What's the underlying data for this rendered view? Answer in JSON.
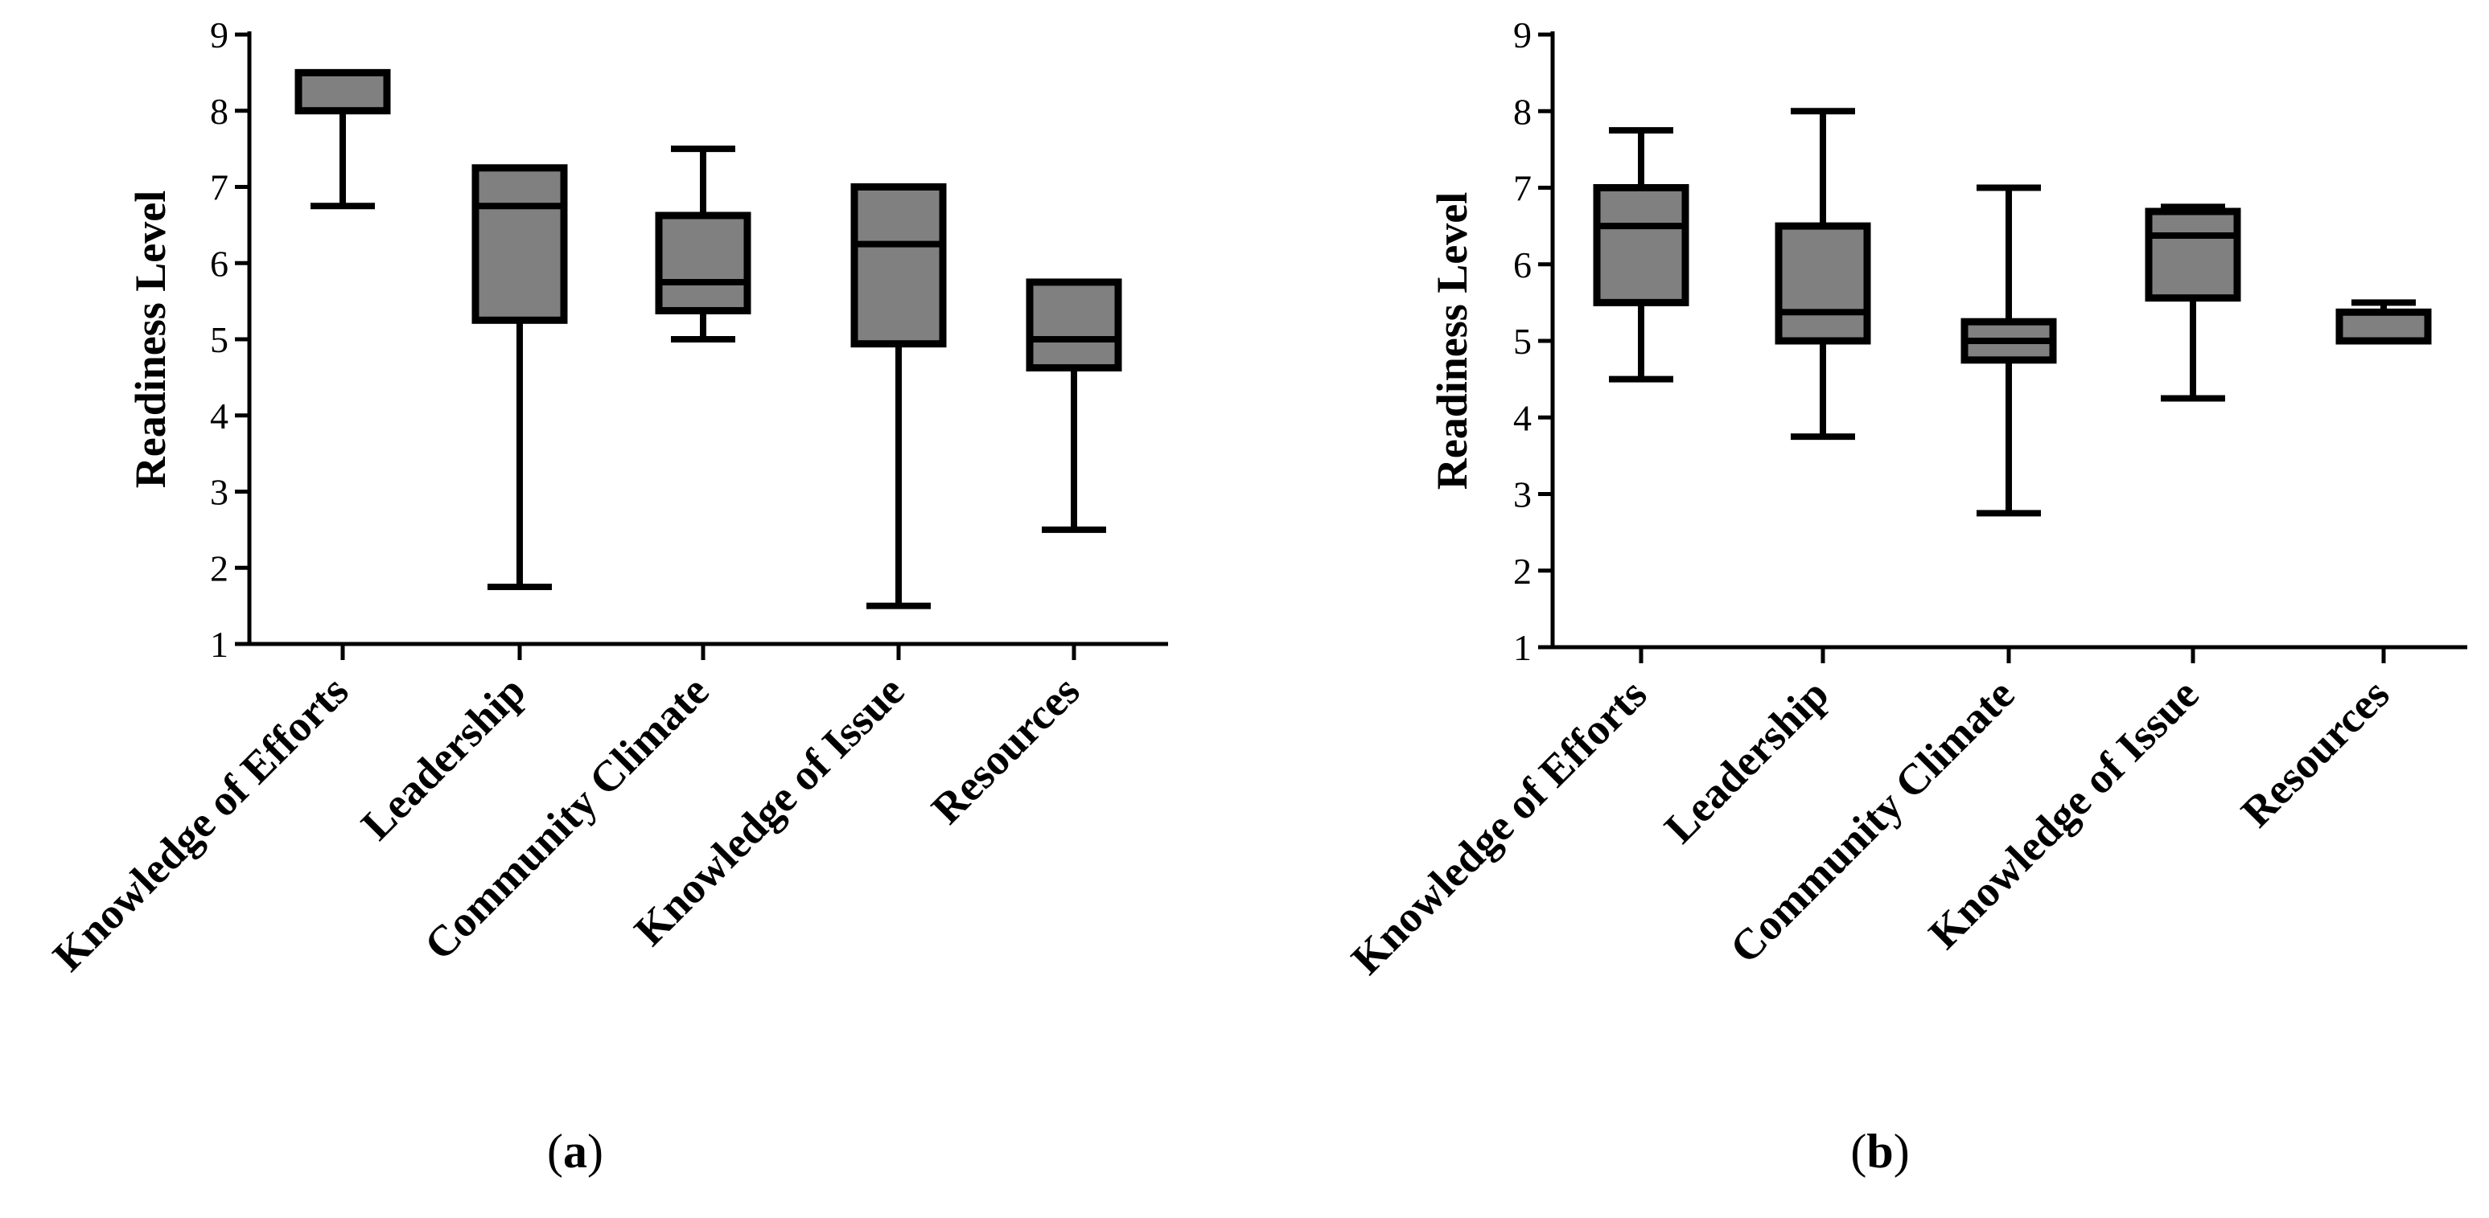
{
  "chart_data": [
    {
      "type": "box",
      "panel": "a",
      "ylabel": "Readiness Level",
      "xlabel": "",
      "ylim": [
        1,
        9
      ],
      "yticks": [
        1,
        2,
        3,
        4,
        5,
        6,
        7,
        8,
        9
      ],
      "categories": [
        "Knowledge of Efforts",
        "Leadership",
        "Community Climate",
        "Knowledge of Issue",
        "Resources"
      ],
      "boxes": [
        {
          "name": "Knowledge of Efforts",
          "min": 6.75,
          "q1": 8.0,
          "median": 8.0,
          "q3": 8.5,
          "max": 8.5
        },
        {
          "name": "Leadership",
          "min": 1.75,
          "q1": 5.25,
          "median": 6.75,
          "q3": 7.25,
          "max": 7.25
        },
        {
          "name": "Community Climate",
          "min": 5.0,
          "q1": 5.375,
          "median": 5.75,
          "q3": 6.625,
          "max": 7.5
        },
        {
          "name": "Knowledge of Issue",
          "min": 1.5,
          "q1": 4.94,
          "median": 6.25,
          "q3": 7.0,
          "max": 7.0
        },
        {
          "name": "Resources",
          "min": 2.5,
          "q1": 4.625,
          "median": 5.0,
          "q3": 5.75,
          "max": 5.75
        }
      ],
      "caption": {
        "open": "(",
        "letter": "a",
        "close": ")"
      }
    },
    {
      "type": "box",
      "panel": "b",
      "ylabel": "Readiness Level",
      "xlabel": "",
      "ylim": [
        1,
        9
      ],
      "yticks": [
        1,
        2,
        3,
        4,
        5,
        6,
        7,
        8,
        9
      ],
      "categories": [
        "Knowledge of Efforts",
        "Leadership",
        "Community Climate",
        "Knowledge of Issue",
        "Resources"
      ],
      "boxes": [
        {
          "name": "Knowledge of Efforts",
          "min": 4.5,
          "q1": 5.5,
          "median": 6.5,
          "q3": 7.0,
          "max": 7.75
        },
        {
          "name": "Leadership",
          "min": 3.75,
          "q1": 5.0,
          "median": 5.375,
          "q3": 6.5,
          "max": 8.0
        },
        {
          "name": "Community Climate",
          "min": 2.75,
          "q1": 4.75,
          "median": 5.0,
          "q3": 5.25,
          "max": 7.0
        },
        {
          "name": "Knowledge of Issue",
          "min": 4.25,
          "q1": 5.56,
          "median": 6.375,
          "q3": 6.69,
          "max": 6.75
        },
        {
          "name": "Resources",
          "min": 5.0,
          "q1": 5.0,
          "median": 5.375,
          "q3": 5.375,
          "max": 5.5
        }
      ],
      "caption": {
        "open": "(",
        "letter": "b",
        "close": ")"
      }
    }
  ]
}
